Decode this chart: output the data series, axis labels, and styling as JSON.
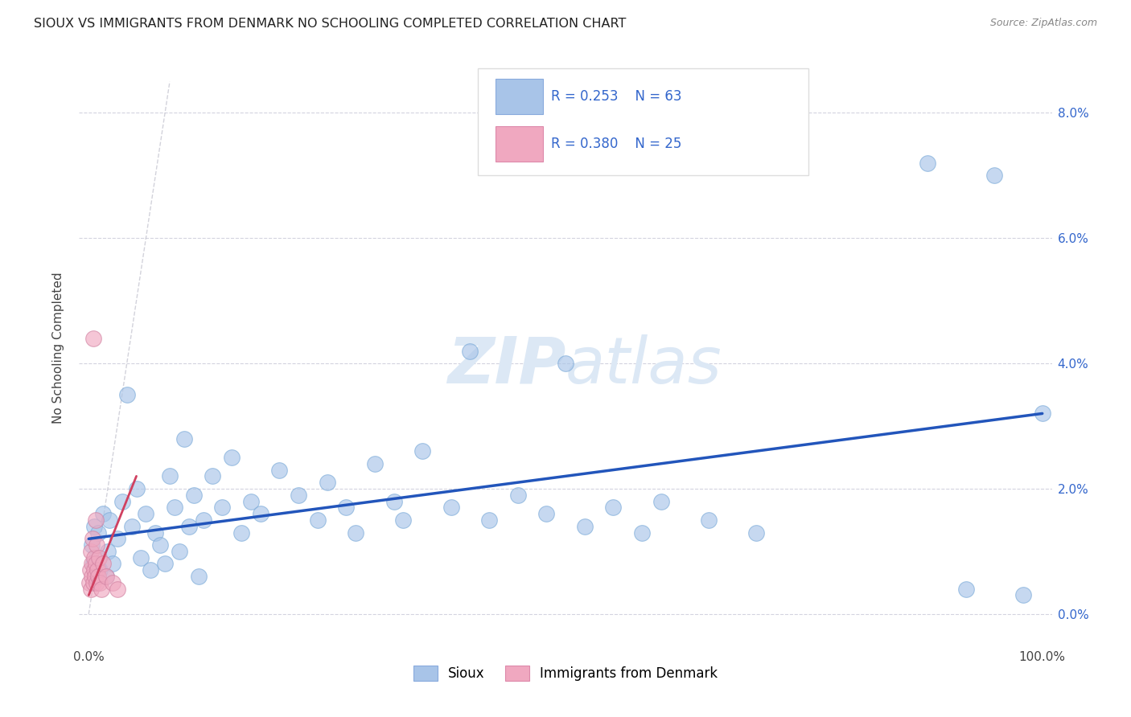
{
  "title": "SIOUX VS IMMIGRANTS FROM DENMARK NO SCHOOLING COMPLETED CORRELATION CHART",
  "source": "Source: ZipAtlas.com",
  "ylabel": "No Schooling Completed",
  "ytick_vals": [
    0.0,
    2.0,
    4.0,
    6.0,
    8.0
  ],
  "legend_r1": "0.253",
  "legend_n1": "63",
  "legend_r2": "0.380",
  "legend_n2": "25",
  "sioux_color": "#a8c4e8",
  "denmark_color": "#f0a8c0",
  "blue_line_color": "#2255bb",
  "pink_line_color": "#d04060",
  "ref_line_color": "#c0c0cc",
  "legend_text_color": "#3366cc",
  "watermark_color": "#dce8f5",
  "sioux_points": [
    [
      0.3,
      1.1
    ],
    [
      0.5,
      0.8
    ],
    [
      0.6,
      1.4
    ],
    [
      0.8,
      0.9
    ],
    [
      1.0,
      1.3
    ],
    [
      1.2,
      0.7
    ],
    [
      1.5,
      1.6
    ],
    [
      1.8,
      0.6
    ],
    [
      2.0,
      1.0
    ],
    [
      2.2,
      1.5
    ],
    [
      2.5,
      0.8
    ],
    [
      3.0,
      1.2
    ],
    [
      3.5,
      1.8
    ],
    [
      4.0,
      3.5
    ],
    [
      4.5,
      1.4
    ],
    [
      5.0,
      2.0
    ],
    [
      5.5,
      0.9
    ],
    [
      6.0,
      1.6
    ],
    [
      6.5,
      0.7
    ],
    [
      7.0,
      1.3
    ],
    [
      7.5,
      1.1
    ],
    [
      8.0,
      0.8
    ],
    [
      8.5,
      2.2
    ],
    [
      9.0,
      1.7
    ],
    [
      9.5,
      1.0
    ],
    [
      10.0,
      2.8
    ],
    [
      10.5,
      1.4
    ],
    [
      11.0,
      1.9
    ],
    [
      11.5,
      0.6
    ],
    [
      12.0,
      1.5
    ],
    [
      13.0,
      2.2
    ],
    [
      14.0,
      1.7
    ],
    [
      15.0,
      2.5
    ],
    [
      16.0,
      1.3
    ],
    [
      17.0,
      1.8
    ],
    [
      18.0,
      1.6
    ],
    [
      20.0,
      2.3
    ],
    [
      22.0,
      1.9
    ],
    [
      24.0,
      1.5
    ],
    [
      25.0,
      2.1
    ],
    [
      27.0,
      1.7
    ],
    [
      28.0,
      1.3
    ],
    [
      30.0,
      2.4
    ],
    [
      32.0,
      1.8
    ],
    [
      33.0,
      1.5
    ],
    [
      35.0,
      2.6
    ],
    [
      38.0,
      1.7
    ],
    [
      40.0,
      4.2
    ],
    [
      42.0,
      1.5
    ],
    [
      45.0,
      1.9
    ],
    [
      48.0,
      1.6
    ],
    [
      50.0,
      4.0
    ],
    [
      52.0,
      1.4
    ],
    [
      55.0,
      1.7
    ],
    [
      58.0,
      1.3
    ],
    [
      60.0,
      1.8
    ],
    [
      65.0,
      1.5
    ],
    [
      70.0,
      1.3
    ],
    [
      88.0,
      7.2
    ],
    [
      92.0,
      0.4
    ],
    [
      95.0,
      7.0
    ],
    [
      98.0,
      0.3
    ],
    [
      100.0,
      3.2
    ]
  ],
  "denmark_points": [
    [
      0.1,
      0.5
    ],
    [
      0.15,
      0.7
    ],
    [
      0.2,
      1.0
    ],
    [
      0.25,
      0.4
    ],
    [
      0.3,
      0.8
    ],
    [
      0.35,
      0.6
    ],
    [
      0.4,
      1.2
    ],
    [
      0.45,
      0.5
    ],
    [
      0.5,
      4.4
    ],
    [
      0.55,
      0.7
    ],
    [
      0.6,
      0.9
    ],
    [
      0.65,
      0.6
    ],
    [
      0.7,
      1.5
    ],
    [
      0.75,
      0.8
    ],
    [
      0.8,
      0.5
    ],
    [
      0.85,
      1.1
    ],
    [
      0.9,
      0.7
    ],
    [
      1.0,
      0.6
    ],
    [
      1.1,
      0.9
    ],
    [
      1.2,
      0.5
    ],
    [
      1.3,
      0.4
    ],
    [
      1.5,
      0.8
    ],
    [
      1.8,
      0.6
    ],
    [
      2.5,
      0.5
    ],
    [
      3.0,
      0.4
    ]
  ],
  "sioux_trend": [
    0,
    1.2,
    100,
    3.2
  ],
  "denmark_trend": [
    0,
    0.3,
    5,
    2.2
  ],
  "ref_line": [
    0,
    0,
    8.5,
    8.5
  ]
}
